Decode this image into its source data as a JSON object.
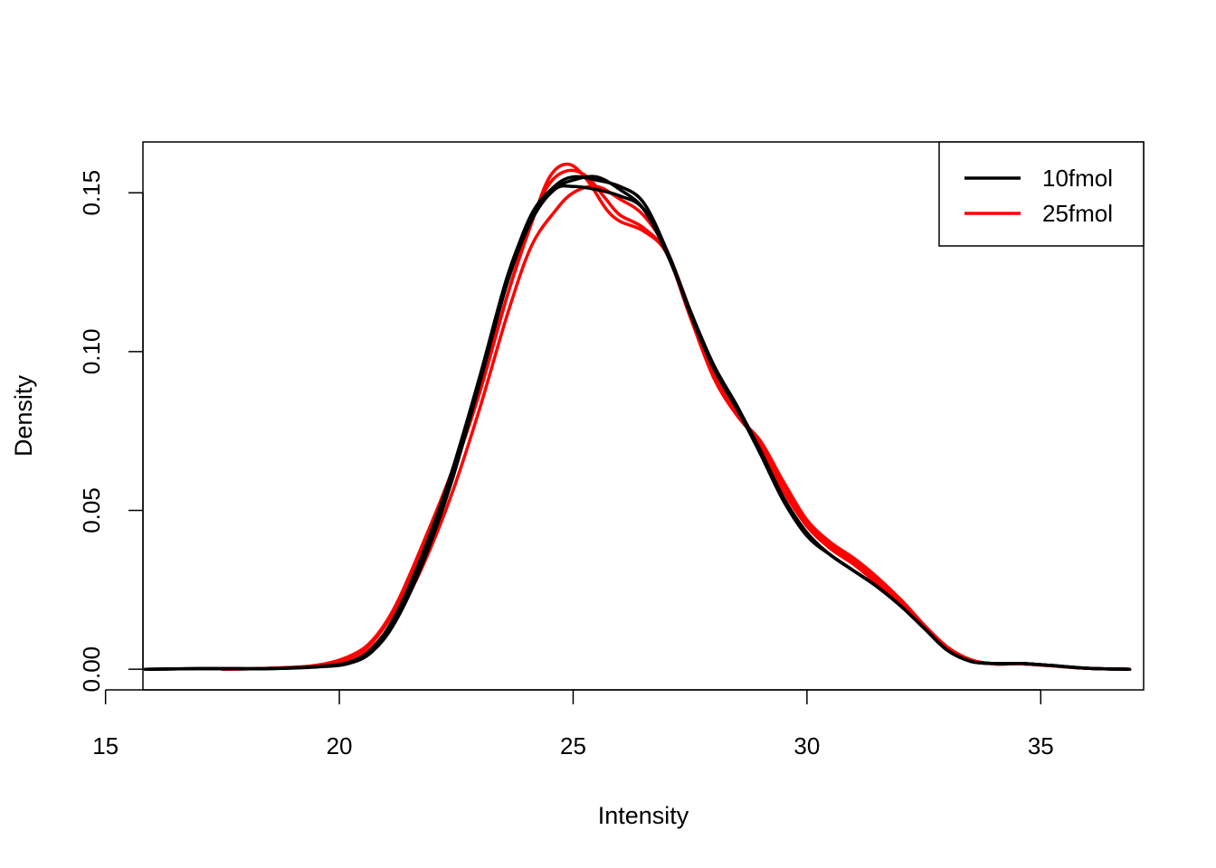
{
  "chart_data": {
    "type": "line",
    "title": "",
    "xlabel": "Intensity",
    "ylabel": "Density",
    "xlim": [
      15.8,
      37.2
    ],
    "ylim": [
      -0.0065,
      0.166
    ],
    "x_ticks": [
      15,
      20,
      25,
      30,
      35
    ],
    "x_tick_labels": [
      "15",
      "20",
      "25",
      "30",
      "35"
    ],
    "y_ticks": [
      0,
      0.05,
      0.1,
      0.15
    ],
    "y_tick_labels": [
      "0.00",
      "0.05",
      "0.10",
      "0.15"
    ],
    "grid": false,
    "legend": {
      "position": "top-right",
      "entries": [
        {
          "label": "10fmol",
          "color": "#000000"
        },
        {
          "label": "25fmol",
          "color": "#ff0000"
        }
      ]
    },
    "series": [
      {
        "group": "10fmol",
        "color": "#000000",
        "points": [
          [
            15.85,
            0
          ],
          [
            17,
            0.0002
          ],
          [
            18.5,
            0.0002
          ],
          [
            19.5,
            0.0008
          ],
          [
            20.2,
            0.002
          ],
          [
            20.7,
            0.006
          ],
          [
            21.2,
            0.016
          ],
          [
            21.8,
            0.035
          ],
          [
            22.4,
            0.06
          ],
          [
            23,
            0.09
          ],
          [
            23.6,
            0.122
          ],
          [
            24.1,
            0.141
          ],
          [
            24.6,
            0.151
          ],
          [
            25,
            0.152
          ],
          [
            25.5,
            0.151
          ],
          [
            26,
            0.149
          ],
          [
            26.5,
            0.145
          ],
          [
            27,
            0.132
          ],
          [
            27.5,
            0.113
          ],
          [
            28,
            0.095
          ],
          [
            28.5,
            0.082
          ],
          [
            29,
            0.068
          ],
          [
            29.5,
            0.053
          ],
          [
            30,
            0.042
          ],
          [
            30.5,
            0.036
          ],
          [
            31,
            0.031
          ],
          [
            31.5,
            0.026
          ],
          [
            32,
            0.02
          ],
          [
            32.5,
            0.013
          ],
          [
            33,
            0.006
          ],
          [
            33.5,
            0.0025
          ],
          [
            34,
            0.0018
          ],
          [
            34.6,
            0.0018
          ],
          [
            35.2,
            0.0012
          ],
          [
            36,
            0.0003
          ],
          [
            36.9,
            0
          ]
        ]
      },
      {
        "group": "10fmol",
        "color": "#000000",
        "points": [
          [
            15.85,
            0
          ],
          [
            17,
            0.0002
          ],
          [
            18.5,
            0.0002
          ],
          [
            19.5,
            0.0008
          ],
          [
            20.2,
            0.0022
          ],
          [
            20.7,
            0.0065
          ],
          [
            21.2,
            0.017
          ],
          [
            21.8,
            0.037
          ],
          [
            22.4,
            0.062
          ],
          [
            23,
            0.092
          ],
          [
            23.6,
            0.124
          ],
          [
            24.1,
            0.142
          ],
          [
            24.6,
            0.151
          ],
          [
            25,
            0.154
          ],
          [
            25.5,
            0.155
          ],
          [
            26,
            0.151
          ],
          [
            26.5,
            0.145
          ],
          [
            27,
            0.131
          ],
          [
            27.5,
            0.113
          ],
          [
            28,
            0.096
          ],
          [
            28.5,
            0.083
          ],
          [
            29,
            0.069
          ],
          [
            29.5,
            0.054
          ],
          [
            30,
            0.043
          ],
          [
            30.5,
            0.036
          ],
          [
            31,
            0.031
          ],
          [
            31.5,
            0.026
          ],
          [
            32,
            0.02
          ],
          [
            32.5,
            0.013
          ],
          [
            33,
            0.006
          ],
          [
            33.5,
            0.0025
          ],
          [
            34,
            0.0018
          ],
          [
            34.6,
            0.0018
          ],
          [
            35.2,
            0.0012
          ],
          [
            36,
            0.0003
          ],
          [
            36.9,
            0
          ]
        ]
      },
      {
        "group": "10fmol",
        "color": "#000000",
        "points": [
          [
            15.85,
            0
          ],
          [
            17,
            0.0002
          ],
          [
            18.5,
            0.0002
          ],
          [
            19.5,
            0.0007
          ],
          [
            20.2,
            0.0018
          ],
          [
            20.7,
            0.0055
          ],
          [
            21.2,
            0.015
          ],
          [
            21.8,
            0.034
          ],
          [
            22.4,
            0.059
          ],
          [
            23,
            0.09
          ],
          [
            23.6,
            0.123
          ],
          [
            24.1,
            0.143
          ],
          [
            24.6,
            0.152
          ],
          [
            25,
            0.155
          ],
          [
            25.5,
            0.154
          ],
          [
            26,
            0.152
          ],
          [
            26.5,
            0.147
          ],
          [
            27,
            0.132
          ],
          [
            27.5,
            0.112
          ],
          [
            28,
            0.095
          ],
          [
            28.5,
            0.083
          ],
          [
            29,
            0.068
          ],
          [
            29.5,
            0.053
          ],
          [
            30,
            0.042
          ],
          [
            30.5,
            0.036
          ],
          [
            31,
            0.031
          ],
          [
            31.5,
            0.026
          ],
          [
            32,
            0.02
          ],
          [
            32.5,
            0.013
          ],
          [
            33,
            0.006
          ],
          [
            33.5,
            0.0025
          ],
          [
            34,
            0.0018
          ],
          [
            34.6,
            0.0018
          ],
          [
            35.2,
            0.0012
          ],
          [
            36,
            0.0003
          ],
          [
            36.9,
            0
          ]
        ]
      },
      {
        "group": "25fmol",
        "color": "#ff0000",
        "points": [
          [
            17.5,
            0
          ],
          [
            18.5,
            0.0003
          ],
          [
            19.5,
            0.0012
          ],
          [
            20.2,
            0.004
          ],
          [
            20.7,
            0.009
          ],
          [
            21.2,
            0.02
          ],
          [
            21.8,
            0.04
          ],
          [
            22.4,
            0.062
          ],
          [
            23,
            0.088
          ],
          [
            23.6,
            0.118
          ],
          [
            24.1,
            0.14
          ],
          [
            24.5,
            0.155
          ],
          [
            24.9,
            0.159
          ],
          [
            25.3,
            0.154
          ],
          [
            25.7,
            0.145
          ],
          [
            26,
            0.141
          ],
          [
            26.5,
            0.138
          ],
          [
            27,
            0.131
          ],
          [
            27.5,
            0.112
          ],
          [
            28,
            0.092
          ],
          [
            28.5,
            0.08
          ],
          [
            29,
            0.071
          ],
          [
            29.5,
            0.058
          ],
          [
            30,
            0.046
          ],
          [
            30.5,
            0.039
          ],
          [
            31,
            0.034
          ],
          [
            31.5,
            0.028
          ],
          [
            32,
            0.022
          ],
          [
            32.5,
            0.014
          ],
          [
            33,
            0.007
          ],
          [
            33.5,
            0.003
          ],
          [
            34,
            0.0017
          ],
          [
            34.6,
            0.0017
          ],
          [
            35.2,
            0.0011
          ],
          [
            36,
            0.0003
          ],
          [
            36.9,
            0
          ]
        ]
      },
      {
        "group": "25fmol",
        "color": "#ff0000",
        "points": [
          [
            17.5,
            0
          ],
          [
            18.5,
            0.0003
          ],
          [
            19.5,
            0.0011
          ],
          [
            20.2,
            0.0035
          ],
          [
            20.7,
            0.0085
          ],
          [
            21.2,
            0.019
          ],
          [
            21.8,
            0.039
          ],
          [
            22.4,
            0.061
          ],
          [
            23,
            0.087
          ],
          [
            23.6,
            0.118
          ],
          [
            24.1,
            0.141
          ],
          [
            24.5,
            0.153
          ],
          [
            24.9,
            0.157
          ],
          [
            25.3,
            0.155
          ],
          [
            25.7,
            0.148
          ],
          [
            26,
            0.143
          ],
          [
            26.5,
            0.139
          ],
          [
            27,
            0.131
          ],
          [
            27.5,
            0.111
          ],
          [
            28,
            0.092
          ],
          [
            28.5,
            0.08
          ],
          [
            29,
            0.072
          ],
          [
            29.5,
            0.059
          ],
          [
            30,
            0.047
          ],
          [
            30.5,
            0.04
          ],
          [
            31,
            0.035
          ],
          [
            31.5,
            0.029
          ],
          [
            32,
            0.022
          ],
          [
            32.5,
            0.014
          ],
          [
            33,
            0.007
          ],
          [
            33.5,
            0.003
          ],
          [
            34,
            0.0017
          ],
          [
            34.6,
            0.0017
          ],
          [
            35.2,
            0.0011
          ],
          [
            36,
            0.0003
          ],
          [
            36.9,
            0
          ]
        ]
      },
      {
        "group": "25fmol",
        "color": "#ff0000",
        "points": [
          [
            17.5,
            0
          ],
          [
            18.5,
            0.0003
          ],
          [
            19.5,
            0.0008
          ],
          [
            20.2,
            0.0025
          ],
          [
            20.7,
            0.007
          ],
          [
            21.2,
            0.016
          ],
          [
            21.8,
            0.033
          ],
          [
            22.4,
            0.055
          ],
          [
            23,
            0.082
          ],
          [
            23.6,
            0.112
          ],
          [
            24.1,
            0.133
          ],
          [
            24.6,
            0.144
          ],
          [
            25,
            0.15
          ],
          [
            25.5,
            0.152
          ],
          [
            26,
            0.148
          ],
          [
            26.5,
            0.143
          ],
          [
            27,
            0.132
          ],
          [
            27.5,
            0.113
          ],
          [
            28,
            0.094
          ],
          [
            28.5,
            0.081
          ],
          [
            29,
            0.07
          ],
          [
            29.5,
            0.056
          ],
          [
            30,
            0.045
          ],
          [
            30.5,
            0.038
          ],
          [
            31,
            0.033
          ],
          [
            31.5,
            0.027
          ],
          [
            32,
            0.021
          ],
          [
            32.5,
            0.013
          ],
          [
            33,
            0.0065
          ],
          [
            33.5,
            0.0028
          ],
          [
            34,
            0.0017
          ],
          [
            34.6,
            0.0017
          ],
          [
            35.2,
            0.0011
          ],
          [
            36,
            0.0003
          ],
          [
            36.9,
            0
          ]
        ]
      }
    ]
  }
}
